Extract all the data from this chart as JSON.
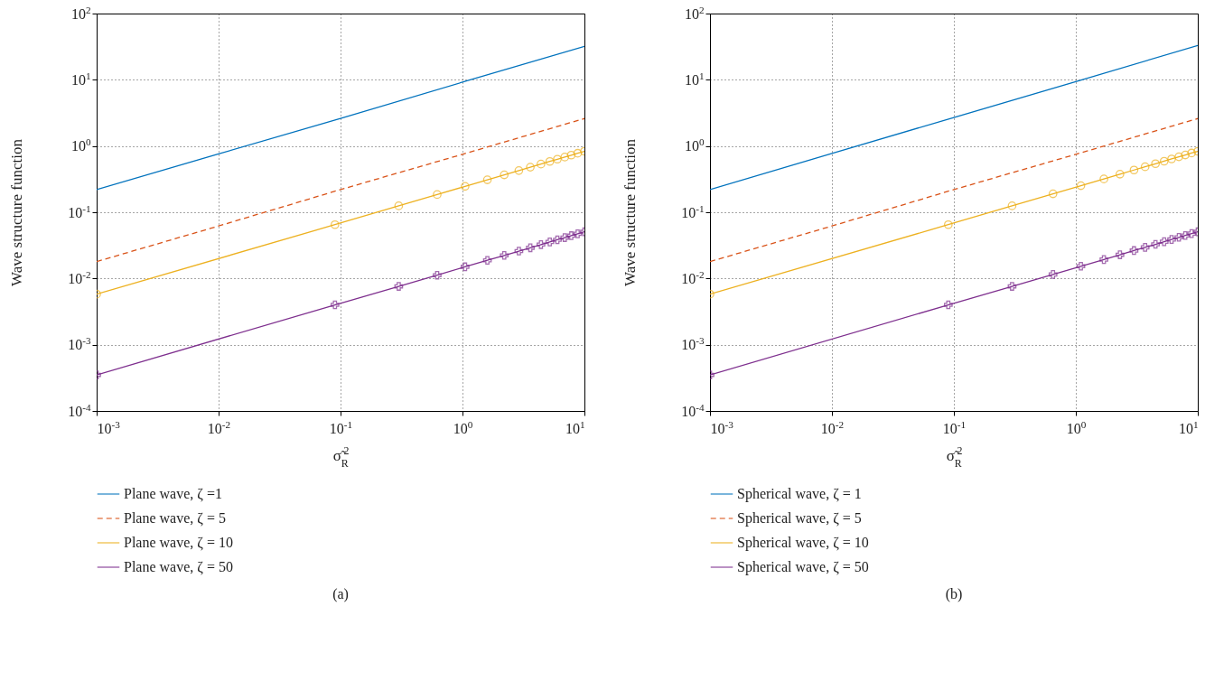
{
  "chart_data": [
    {
      "type": "line",
      "xlabel": "σ̃$_{R}$$^{2}$",
      "ylabel": "Wave structure function",
      "annotations": [
        "(a)"
      ],
      "log": "xy",
      "grid": true,
      "legend": "bottom",
      "xlim": [
        0.001,
        10
      ],
      "ylim": [
        0.0001,
        100
      ],
      "xticks": [
        {
          "value": 0.001,
          "label": "10$^{-3}$"
        },
        {
          "value": 0.01,
          "label": "10$^{-2}$"
        },
        {
          "value": 0.1,
          "label": "10$^{-1}$"
        },
        {
          "value": 1,
          "label": "10$^{0}$"
        },
        {
          "value": 10,
          "label": "10$^{1}$"
        }
      ],
      "yticks": [
        {
          "value": 0.0001,
          "label": "10$^{-4}$"
        },
        {
          "value": 0.001,
          "label": "10$^{-3}$"
        },
        {
          "value": 0.01,
          "label": "10$^{-2}$"
        },
        {
          "value": 0.1,
          "label": "10$^{-1}$"
        },
        {
          "value": 1,
          "label": "10$^{0}$"
        },
        {
          "value": 10,
          "label": "10$^{1}$"
        },
        {
          "value": 100,
          "label": "10$^{2}$"
        }
      ],
      "series": [
        {
          "name": "Plane wave, ζ =1",
          "color": "#0072bd",
          "line_style": "solid",
          "x": [
            0.001,
            0.01,
            0.1,
            1,
            10
          ],
          "values": [
            0.22,
            0.76,
            2.6,
            9.2,
            32
          ]
        },
        {
          "name": "Plane wave, ζ = 5",
          "color": "#d95319",
          "line_style": "dashed",
          "x": [
            0.001,
            0.01,
            0.1,
            1,
            10
          ],
          "values": [
            0.018,
            0.062,
            0.22,
            0.75,
            2.6
          ]
        },
        {
          "name": "Plane wave, ζ = 10",
          "color": "#edb120",
          "line_style": "solid",
          "marker": "circle",
          "x": [
            0.001,
            0.09,
            0.3,
            0.62,
            1.05,
            1.6,
            2.2,
            2.9,
            3.6,
            4.4,
            5.2,
            6.0,
            6.9,
            7.8,
            8.8,
            10
          ],
          "values": [
            0.0058,
            0.065,
            0.125,
            0.185,
            0.246,
            0.309,
            0.367,
            0.426,
            0.479,
            0.534,
            0.585,
            0.632,
            0.681,
            0.728,
            0.777,
            0.832
          ]
        },
        {
          "name": "Plane wave, ζ = 50",
          "color": "#7e2f8e",
          "line_style": "solid",
          "marker": "cross",
          "x": [
            0.001,
            0.09,
            0.3,
            0.62,
            1.05,
            1.6,
            2.2,
            2.9,
            3.6,
            4.4,
            5.2,
            6.0,
            6.9,
            7.8,
            8.8,
            10
          ],
          "values": [
            0.00035,
            0.004,
            0.0076,
            0.0112,
            0.015,
            0.0188,
            0.0223,
            0.0259,
            0.0291,
            0.0325,
            0.0356,
            0.0384,
            0.0414,
            0.0443,
            0.0473,
            0.0506
          ]
        }
      ]
    },
    {
      "type": "line",
      "xlabel": "σ̃$_{R}$$^{2}$",
      "ylabel": "Wave structure function",
      "annotations": [
        "(b)"
      ],
      "log": "xy",
      "grid": true,
      "legend": "bottom",
      "xlim": [
        0.001,
        10
      ],
      "ylim": [
        0.0001,
        100
      ],
      "xticks": [
        {
          "value": 0.001,
          "label": "10$^{-3}$"
        },
        {
          "value": 0.01,
          "label": "10$^{-2}$"
        },
        {
          "value": 0.1,
          "label": "10$^{-1}$"
        },
        {
          "value": 1,
          "label": "10$^{0}$"
        },
        {
          "value": 10,
          "label": "10$^{1}$"
        }
      ],
      "yticks": [
        {
          "value": 0.0001,
          "label": "10$^{-4}$"
        },
        {
          "value": 0.001,
          "label": "10$^{-3}$"
        },
        {
          "value": 0.01,
          "label": "10$^{-2}$"
        },
        {
          "value": 0.1,
          "label": "10$^{-1}$"
        },
        {
          "value": 1,
          "label": "10$^{0}$"
        },
        {
          "value": 10,
          "label": "10$^{1}$"
        },
        {
          "value": 100,
          "label": "10$^{2}$"
        }
      ],
      "series": [
        {
          "name": "Spherical wave, ζ = 1",
          "color": "#0072bd",
          "line_style": "solid",
          "x": [
            0.001,
            0.01,
            0.1,
            1,
            10
          ],
          "values": [
            0.22,
            0.77,
            2.7,
            9.4,
            33
          ]
        },
        {
          "name": "Spherical wave, ζ = 5",
          "color": "#d95319",
          "line_style": "dashed",
          "x": [
            0.001,
            0.01,
            0.1,
            1,
            10
          ],
          "values": [
            0.018,
            0.062,
            0.22,
            0.75,
            2.6
          ]
        },
        {
          "name": "Spherical wave, ζ = 10",
          "color": "#edb120",
          "line_style": "solid",
          "marker": "circle",
          "x": [
            0.001,
            0.09,
            0.3,
            0.65,
            1.1,
            1.7,
            2.3,
            3.0,
            3.7,
            4.5,
            5.3,
            6.1,
            7.0,
            7.9,
            8.9,
            10
          ],
          "values": [
            0.0058,
            0.065,
            0.125,
            0.19,
            0.252,
            0.318,
            0.376,
            0.434,
            0.486,
            0.54,
            0.59,
            0.638,
            0.687,
            0.733,
            0.783,
            0.832
          ]
        },
        {
          "name": "Spherical wave, ζ = 50",
          "color": "#7e2f8e",
          "line_style": "solid",
          "marker": "cross",
          "x": [
            0.001,
            0.09,
            0.3,
            0.65,
            1.1,
            1.7,
            2.3,
            3.0,
            3.7,
            4.5,
            5.3,
            6.1,
            7.0,
            7.9,
            8.9,
            10
          ],
          "values": [
            0.00035,
            0.004,
            0.0076,
            0.0115,
            0.0153,
            0.0193,
            0.0228,
            0.0264,
            0.0295,
            0.0328,
            0.0359,
            0.0388,
            0.0418,
            0.0446,
            0.0476,
            0.0506
          ]
        }
      ]
    }
  ]
}
